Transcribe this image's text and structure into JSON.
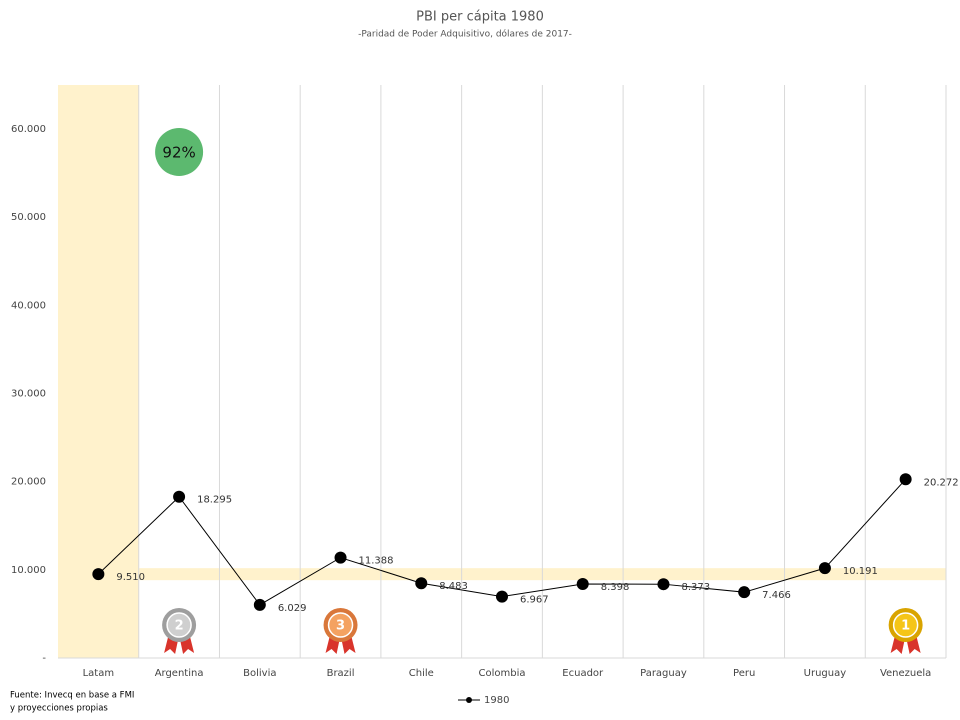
{
  "chart_data": {
    "type": "line",
    "title": "PBI per cápita 1980",
    "subtitle": "-Paridad de Poder Adquisitivo, dólares de 2017-",
    "categories": [
      "Latam",
      "Argentina",
      "Bolivia",
      "Brazil",
      "Chile",
      "Colombia",
      "Ecuador",
      "Paraguay",
      "Peru",
      "Uruguay",
      "Venezuela"
    ],
    "series": [
      {
        "name": "1980",
        "color": "#000000",
        "values": [
          9510,
          18295,
          6029,
          11388,
          8483,
          6967,
          8398,
          8373,
          7466,
          10191,
          20272
        ],
        "value_labels": [
          "9.510",
          "18.295",
          "6.029",
          "11.388",
          "8.483",
          "6.967",
          "8.398",
          "8.373",
          "7.466",
          "10.191",
          "20.272"
        ]
      }
    ],
    "ylim": [
      0,
      65000
    ],
    "yticks": [
      {
        "value": 0,
        "label": "-"
      },
      {
        "value": 10000,
        "label": "10.000"
      },
      {
        "value": 20000,
        "label": "20.000"
      },
      {
        "value": 30000,
        "label": "30.000"
      },
      {
        "value": 40000,
        "label": "40.000"
      },
      {
        "value": 50000,
        "label": "50.000"
      },
      {
        "value": 60000,
        "label": "60.000"
      }
    ],
    "highlight": "Latam",
    "badge": {
      "category": "Argentina",
      "label": "92%"
    },
    "medals": [
      {
        "category": "Argentina",
        "label": "2"
      },
      {
        "category": "Brazil",
        "label": "3"
      },
      {
        "category": "Venezuela",
        "label": "1"
      }
    ],
    "source": [
      "Fuente: Invecq en base a FMI",
      "y proyecciones propias"
    ],
    "legend": "bottom"
  }
}
